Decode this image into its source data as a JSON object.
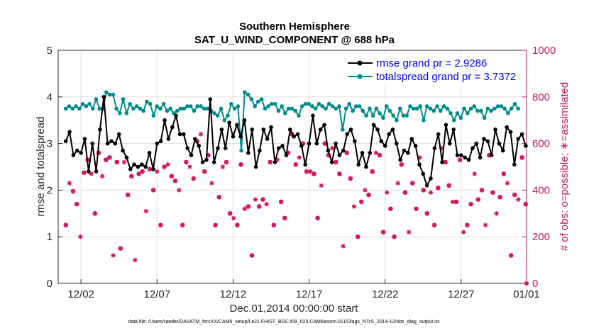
{
  "chart_data": {
    "type": "line",
    "title": "Southern Hemisphere",
    "subtitle": "SAT_U_WIND_COMPONENT @ 688 hPa",
    "xlabel": "Dec.01,2014 00:00:00 start",
    "ylabel_left": "rmse and totalspread",
    "ylabel_right": "# of obs: o=possible; ∗=assimilated",
    "footnote": "data file: /Users/raeder/DAI/ATM_forcXX/CAM6_setup/f.e21.FHIST_BGC.f09_025.CAM6assim.011/Diags_NTrS_2014-12/obs_diag_output.nc",
    "xlim": [
      0.5,
      31.3
    ],
    "ylim_left": [
      0,
      5
    ],
    "ylim_right": [
      0,
      1000
    ],
    "x_tick_positions": [
      2,
      7,
      12,
      17,
      22,
      27,
      32
    ],
    "x_tick_labels": [
      "12/02",
      "12/07",
      "12/12",
      "12/17",
      "12/22",
      "12/27",
      "01/01"
    ],
    "y_left_ticks": [
      "0",
      "1",
      "2",
      "3",
      "4",
      "5"
    ],
    "y_right_ticks": [
      "0",
      "200",
      "400",
      "600",
      "800",
      "1000"
    ],
    "grid": true,
    "legend_position": "top-right",
    "colors": {
      "rmse": "#000000",
      "spread": "#008b8b",
      "obs": "#d4135b",
      "right_axis": "#c2185b"
    },
    "series": [
      {
        "name": "rmse grand pr = 2.9286",
        "axis": "left",
        "values": [
          3.05,
          3.25,
          2.75,
          2.85,
          2.8,
          3.1,
          2.4,
          3.0,
          2.4,
          3.3,
          4.0,
          3.0,
          3.05,
          3.0,
          3.2,
          2.85,
          2.7,
          2.45,
          2.55,
          2.5,
          2.55,
          2.5,
          2.8,
          2.45,
          3.0,
          3.05,
          3.5,
          3.1,
          3.35,
          3.6,
          3.2,
          3.2,
          2.9,
          2.75,
          3.1,
          2.95,
          2.6,
          2.65,
          3.95,
          2.6,
          2.9,
          3.3,
          2.9,
          3.45,
          3.15,
          3.4,
          3.15,
          3.5,
          2.8,
          3.3,
          2.5,
          2.85,
          3.3,
          3.1,
          3.35,
          2.6,
          2.9,
          2.95,
          2.75,
          3.3,
          3.15,
          3.2,
          2.95,
          2.55,
          3.0,
          3.6,
          3.0,
          3.3,
          3.4,
          2.85,
          2.6,
          3.0,
          2.75,
          2.85,
          3.2,
          3.3,
          3.05,
          2.55,
          2.8,
          2.5,
          2.8,
          3.4,
          3.3,
          3.05,
          2.95,
          3.2,
          3.3,
          3.0,
          2.65,
          2.85,
          2.8,
          3.1,
          2.95,
          2.55,
          2.35,
          2.1,
          2.25,
          2.9,
          3.2,
          2.6,
          3.4,
          3.0,
          3.3,
          2.75,
          2.75,
          2.7,
          2.65,
          2.9,
          3.0,
          2.7,
          3.1,
          3.05,
          2.75,
          3.3,
          3.0,
          2.85,
          3.35,
          3.25,
          2.55,
          3.1,
          3.2,
          2.95
        ],
        "x_start": 1.0,
        "x_step": 0.25
      },
      {
        "name": "totalspread grand pr = 3.7372",
        "axis": "left",
        "values": [
          3.75,
          3.8,
          3.75,
          3.8,
          3.75,
          3.85,
          3.8,
          3.85,
          3.75,
          3.95,
          3.75,
          3.75,
          4.1,
          4.05,
          4.05,
          3.75,
          3.65,
          3.95,
          3.65,
          3.85,
          3.75,
          3.8,
          3.75,
          3.7,
          3.9,
          3.85,
          3.6,
          3.8,
          3.75,
          3.85,
          3.7,
          3.75,
          3.65,
          3.7,
          3.75,
          3.75,
          3.8,
          3.8,
          3.7,
          3.8,
          3.8,
          3.75,
          3.75,
          3.7,
          3.65,
          3.6,
          3.75,
          3.5,
          3.6,
          3.85,
          3.75,
          3.8,
          2.85,
          4.1,
          4.05,
          3.95,
          3.8,
          3.9,
          3.95,
          3.75,
          3.8,
          3.85,
          3.85,
          3.7,
          3.8,
          3.65,
          3.75,
          3.75,
          3.7,
          3.6,
          3.8,
          3.85,
          3.85,
          3.8,
          3.75,
          3.85,
          3.8,
          3.75,
          3.85,
          3.8,
          3.75,
          3.8,
          3.3,
          3.75,
          3.85,
          3.7,
          3.8,
          3.8,
          3.7,
          3.6,
          3.75,
          3.6,
          3.75,
          3.65,
          3.55,
          3.8,
          3.7,
          3.6,
          3.5,
          3.75,
          3.6,
          3.6,
          3.8,
          3.75,
          3.75,
          3.8,
          3.5,
          3.8,
          3.75,
          3.7,
          3.8,
          3.7,
          3.8,
          3.75,
          3.65,
          3.5,
          3.65,
          3.55,
          3.75,
          3.65,
          3.75,
          3.8,
          3.7,
          3.7,
          3.55,
          3.75,
          3.7,
          3.75,
          3.8,
          3.8,
          3.75,
          3.65,
          3.75,
          3.85,
          3.75
        ],
        "x_start": 1.0,
        "x_step": 0.222
      },
      {
        "name": "obs possible/assimilated",
        "axis": "right",
        "marker": "asterisk-and-circle",
        "values": [
          250,
          430,
          395,
          340,
          200,
          475,
          530,
          470,
          300,
          560,
          460,
          530,
          540,
          120,
          520,
          150,
          520,
          380,
          460,
          100,
          470,
          480,
          310,
          490,
          400,
          480,
          250,
          500,
          510,
          460,
          440,
          400,
          250,
          520,
          500,
          450,
          610,
          640,
          480,
          550,
          430,
          250,
          370,
          500,
          520,
          300,
          280,
          250,
          510,
          320,
          330,
          120,
          360,
          330,
          360,
          340,
          520,
          250,
          530,
          350,
          280,
          560,
          640,
          510,
          540,
          600,
          480,
          480,
          470,
          280,
          420,
          600,
          550,
          580,
          520,
          470,
          160,
          560,
          450,
          330,
          200,
          350,
          400,
          380,
          480,
          560,
          550,
          220,
          390,
          320,
          200,
          430,
          510,
          390,
          220,
          430,
          320,
          540,
          400,
          300,
          390,
          250,
          410,
          580,
          520,
          420,
          350,
          350,
          530,
          220,
          250,
          340,
          470,
          360,
          400,
          250,
          550,
          390,
          300,
          370,
          470,
          430,
          120,
          380,
          360,
          540,
          340
        ],
        "x_start": 1.0,
        "x_step": 0.24
      }
    ],
    "legend_entries": [
      "rmse grand pr = 2.9286",
      "totalspread grand pr = 3.7372"
    ]
  }
}
